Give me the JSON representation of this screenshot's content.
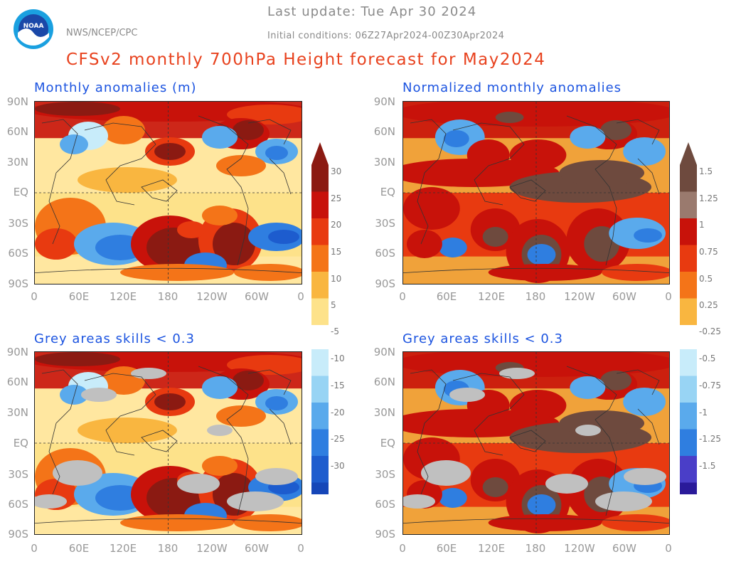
{
  "header": {
    "org": "NWS/NCEP/CPC",
    "logo_text": "NOAA",
    "last_update": "Last update: Tue Apr 30 2024",
    "initial_conditions": "Initial conditions: 06Z27Apr2024-00Z30Apr2024",
    "title": "CFSv2 monthly 700hPa Height forecast for May2024"
  },
  "panels": {
    "top_left_title": "Monthly anomalies (m)",
    "top_right_title": "Normalized monthly anomalies",
    "bottom_left_title": "Grey areas skills < 0.3",
    "bottom_right_title": "Grey areas skills < 0.3"
  },
  "axes": {
    "lat_labels": [
      "90N",
      "60N",
      "30N",
      "EQ",
      "30S",
      "60S",
      "90S"
    ],
    "lon_labels": [
      "0",
      "60E",
      "120E",
      "180",
      "120W",
      "60W",
      "0"
    ]
  },
  "colorbar_left": {
    "labels": [
      "30",
      "25",
      "20",
      "15",
      "10",
      "5",
      "-5",
      "-10",
      "-15",
      "-20",
      "-25",
      "-30"
    ]
  },
  "colorbar_right": {
    "labels": [
      "1.5",
      "1.25",
      "1",
      "0.75",
      "0.5",
      "0.25",
      "-0.25",
      "-0.5",
      "-0.75",
      "-1",
      "-1.25",
      "-1.5"
    ]
  },
  "colors": {
    "pos": [
      "#8b1a12",
      "#c8120a",
      "#e83a10",
      "#f47418",
      "#f9b640",
      "#fde28a"
    ],
    "neg": [
      "#c8ecfa",
      "#98d4f4",
      "#5aaaec",
      "#2f7ee0",
      "#1d5cce",
      "#1546b8"
    ],
    "norm_top": [
      "#6e4a3e",
      "#9a7a6e"
    ],
    "norm_bottom": [
      "#4a3ec8",
      "#2a1a9a"
    ],
    "grey": "#c0c0c0",
    "title": "#e8421e",
    "panel_title": "#1c54e0"
  }
}
